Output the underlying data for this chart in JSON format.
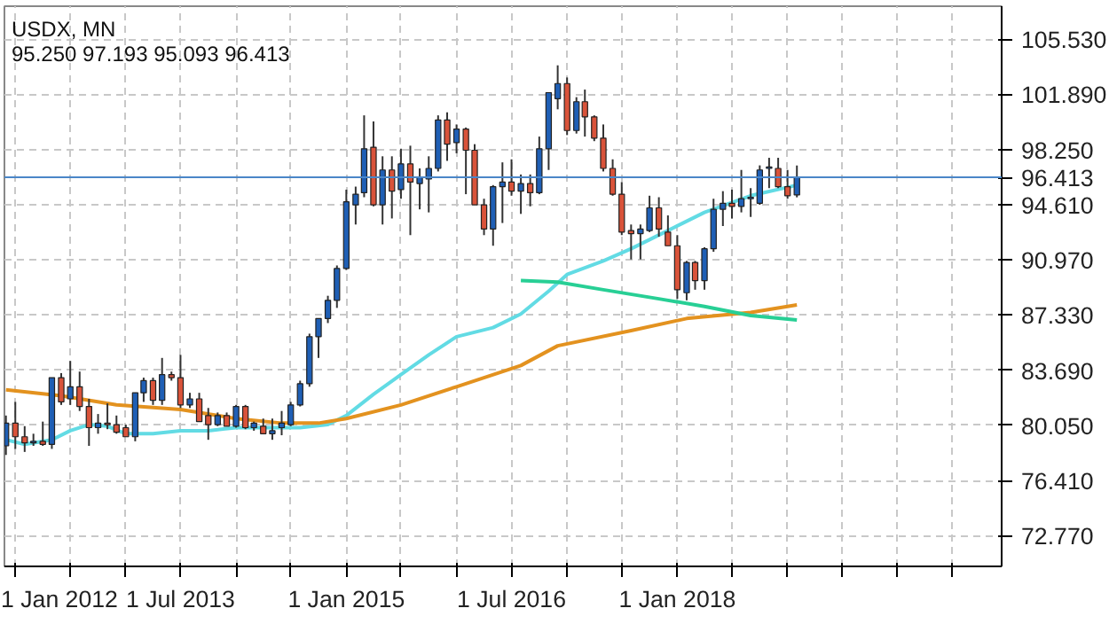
{
  "chart_data": {
    "type": "candlestick",
    "title": "USDX, MN",
    "subtitle": "95.250 97.193 95.093 96.413",
    "x": [
      "2011-12",
      "2012-01",
      "2012-02",
      "2012-03",
      "2012-04",
      "2012-05",
      "2012-06",
      "2012-07",
      "2012-08",
      "2012-09",
      "2012-10",
      "2012-11",
      "2012-12",
      "2013-01",
      "2013-02",
      "2013-03",
      "2013-04",
      "2013-05",
      "2013-06",
      "2013-07",
      "2013-08",
      "2013-09",
      "2013-10",
      "2013-11",
      "2013-12",
      "2014-01",
      "2014-02",
      "2014-03",
      "2014-04",
      "2014-05",
      "2014-06",
      "2014-07",
      "2014-08",
      "2014-09",
      "2014-10",
      "2014-11",
      "2014-12",
      "2015-01",
      "2015-02",
      "2015-03",
      "2015-04",
      "2015-05",
      "2015-06",
      "2015-07",
      "2015-08",
      "2015-09",
      "2015-10",
      "2015-11",
      "2015-12",
      "2016-01",
      "2016-02",
      "2016-03",
      "2016-04",
      "2016-05",
      "2016-06",
      "2016-07",
      "2016-08",
      "2016-09",
      "2016-10",
      "2016-11",
      "2016-12",
      "2017-01",
      "2017-02",
      "2017-03",
      "2017-04",
      "2017-05",
      "2017-06",
      "2017-07",
      "2017-08",
      "2017-09",
      "2017-10",
      "2017-11",
      "2017-12",
      "2018-01",
      "2018-02",
      "2018-03",
      "2018-04",
      "2018-05",
      "2018-06",
      "2018-07",
      "2018-08",
      "2018-09",
      "2018-10",
      "2018-11",
      "2018-12",
      "2019-01",
      "2019-02"
    ],
    "ohlc": [
      [
        78.7,
        80.7,
        78.1,
        80.2
      ],
      [
        80.2,
        81.6,
        78.5,
        79.3
      ],
      [
        79.3,
        80.0,
        78.3,
        78.9
      ],
      [
        78.9,
        79.5,
        78.7,
        79.0
      ],
      [
        79.0,
        80.3,
        78.7,
        78.8
      ],
      [
        78.8,
        83.2,
        78.5,
        83.2
      ],
      [
        83.2,
        83.5,
        81.4,
        81.6
      ],
      [
        81.8,
        84.3,
        81.4,
        82.6
      ],
      [
        82.6,
        83.6,
        81.0,
        81.3
      ],
      [
        81.3,
        81.8,
        78.7,
        79.9
      ],
      [
        79.9,
        80.8,
        79.5,
        80.2
      ],
      [
        80.2,
        81.5,
        79.8,
        80.1
      ],
      [
        80.1,
        80.7,
        79.5,
        79.6
      ],
      [
        79.9,
        80.1,
        79.3,
        79.3
      ],
      [
        79.3,
        82.2,
        79.0,
        82.2
      ],
      [
        82.2,
        83.2,
        81.6,
        83.0
      ],
      [
        83.0,
        83.2,
        81.4,
        81.7
      ],
      [
        81.7,
        84.5,
        81.4,
        83.4
      ],
      [
        83.4,
        83.6,
        83.0,
        83.2
      ],
      [
        83.2,
        84.7,
        81.2,
        81.4
      ],
      [
        81.4,
        82.2,
        81.2,
        81.8
      ],
      [
        81.8,
        82.2,
        80.3,
        80.3
      ],
      [
        80.7,
        81.2,
        79.1,
        80.1
      ],
      [
        80.1,
        80.9,
        80.0,
        80.7
      ],
      [
        80.7,
        80.9,
        80.0,
        80.0
      ],
      [
        80.0,
        81.4,
        79.9,
        81.3
      ],
      [
        81.3,
        81.4,
        79.8,
        79.9
      ],
      [
        79.9,
        80.3,
        79.7,
        80.2
      ],
      [
        80.0,
        80.5,
        79.5,
        79.5
      ],
      [
        79.5,
        80.5,
        79.1,
        79.7
      ],
      [
        79.9,
        81.0,
        79.4,
        80.2
      ],
      [
        80.1,
        81.6,
        80.0,
        81.4
      ],
      [
        81.4,
        83.0,
        81.3,
        82.8
      ],
      [
        82.8,
        86.1,
        82.6,
        85.9
      ],
      [
        85.9,
        87.1,
        84.5,
        87.1
      ],
      [
        87.1,
        88.6,
        86.8,
        88.3
      ],
      [
        88.3,
        90.6,
        87.8,
        90.4
      ],
      [
        90.4,
        95.6,
        90.3,
        94.8
      ],
      [
        94.6,
        95.8,
        93.3,
        95.3
      ],
      [
        95.4,
        100.5,
        95.1,
        98.3
      ],
      [
        98.4,
        100.1,
        94.5,
        94.6
      ],
      [
        94.6,
        97.8,
        93.3,
        96.9
      ],
      [
        96.9,
        97.8,
        93.7,
        95.5
      ],
      [
        95.6,
        98.3,
        95.0,
        97.3
      ],
      [
        97.3,
        98.5,
        92.6,
        96.1
      ],
      [
        96.0,
        97.0,
        94.3,
        96.4
      ],
      [
        96.3,
        97.8,
        94.1,
        97.0
      ],
      [
        97.0,
        100.5,
        96.8,
        100.2
      ],
      [
        100.2,
        100.7,
        97.5,
        98.6
      ],
      [
        98.7,
        99.9,
        98.0,
        99.6
      ],
      [
        99.6,
        99.7,
        95.3,
        98.2
      ],
      [
        98.2,
        98.6,
        94.6,
        94.6
      ],
      [
        94.6,
        95.0,
        92.6,
        93.0
      ],
      [
        93.0,
        95.9,
        91.9,
        95.8
      ],
      [
        95.8,
        97.4,
        93.4,
        96.1
      ],
      [
        96.1,
        97.6,
        95.2,
        95.5
      ],
      [
        95.5,
        96.6,
        94.0,
        96.0
      ],
      [
        96.0,
        96.6,
        94.5,
        95.4
      ],
      [
        95.4,
        99.1,
        95.3,
        98.3
      ],
      [
        98.3,
        102.0,
        96.9,
        102.0
      ],
      [
        101.6,
        103.8,
        100.9,
        102.6
      ],
      [
        102.6,
        103.0,
        99.2,
        99.5
      ],
      [
        99.5,
        101.7,
        99.3,
        101.4
      ],
      [
        101.4,
        102.2,
        99.1,
        100.4
      ],
      [
        100.4,
        100.5,
        98.8,
        99.0
      ],
      [
        99.0,
        99.9,
        96.8,
        97.0
      ],
      [
        97.0,
        97.6,
        95.2,
        95.3
      ],
      [
        95.3,
        96.1,
        92.6,
        92.8
      ],
      [
        92.9,
        93.3,
        91.0,
        92.7
      ],
      [
        92.7,
        93.3,
        91.0,
        93.0
      ],
      [
        92.9,
        95.2,
        92.8,
        94.4
      ],
      [
        94.4,
        95.1,
        92.5,
        93.0
      ],
      [
        92.8,
        93.9,
        91.9,
        91.9
      ],
      [
        91.9,
        92.6,
        88.4,
        89.0
      ],
      [
        88.8,
        90.9,
        88.3,
        90.8
      ],
      [
        90.8,
        90.9,
        89.0,
        89.6
      ],
      [
        89.6,
        91.8,
        89.0,
        91.7
      ],
      [
        91.7,
        95.0,
        91.5,
        94.3
      ],
      [
        94.3,
        95.5,
        93.2,
        94.7
      ],
      [
        94.7,
        95.6,
        93.7,
        94.5
      ],
      [
        94.5,
        96.9,
        94.1,
        95.0
      ],
      [
        95.0,
        95.7,
        93.8,
        95.1
      ],
      [
        94.7,
        97.2,
        94.6,
        96.9
      ],
      [
        97.0,
        97.7,
        95.7,
        97.1
      ],
      [
        97.0,
        97.7,
        95.7,
        95.8
      ],
      [
        95.8,
        96.9,
        95.0,
        95.2
      ],
      [
        95.25,
        97.193,
        95.093,
        96.413
      ]
    ],
    "colors": [
      "#1f5fb5",
      "#d9533a",
      "#d9533a",
      "#1f5fb5",
      "#d9533a",
      "#1f5fb5",
      "#d9533a",
      "#1f5fb5",
      "#d9533a",
      "#d9533a",
      "#1f5fb5",
      "#d9533a",
      "#d9533a",
      "#d9533a",
      "#1f5fb5",
      "#1f5fb5",
      "#d9533a",
      "#1f5fb5",
      "#d9533a",
      "#d9533a",
      "#1f5fb5",
      "#d9533a",
      "#d9533a",
      "#1f5fb5",
      "#d9533a",
      "#1f5fb5",
      "#d9533a",
      "#1f5fb5",
      "#d9533a",
      "#1f5fb5",
      "#1f5fb5",
      "#1f5fb5",
      "#1f5fb5",
      "#1f5fb5",
      "#1f5fb5",
      "#1f5fb5",
      "#1f5fb5",
      "#1f5fb5",
      "#1f5fb5",
      "#1f5fb5",
      "#d9533a",
      "#1f5fb5",
      "#d9533a",
      "#1f5fb5",
      "#d9533a",
      "#1f5fb5",
      "#1f5fb5",
      "#1f5fb5",
      "#d9533a",
      "#1f5fb5",
      "#d9533a",
      "#d9533a",
      "#d9533a",
      "#1f5fb5",
      "#1f5fb5",
      "#d9533a",
      "#1f5fb5",
      "#d9533a",
      "#1f5fb5",
      "#1f5fb5",
      "#1f5fb5",
      "#d9533a",
      "#1f5fb5",
      "#d9533a",
      "#d9533a",
      "#d9533a",
      "#d9533a",
      "#d9533a",
      "#d9533a",
      "#1f5fb5",
      "#1f5fb5",
      "#d9533a",
      "#d9533a",
      "#d9533a",
      "#1f5fb5",
      "#d9533a",
      "#1f5fb5",
      "#1f5fb5",
      "#1f5fb5",
      "#d9533a",
      "#1f5fb5",
      "#1f5fb5",
      "#1f5fb5",
      "#1f5fb5",
      "#d9533a",
      "#d9533a",
      "#1f5fb5"
    ],
    "series": [
      {
        "type": "line",
        "color": "#62dbe4",
        "x": [
          "2011-12",
          "2012-02",
          "2012-05",
          "2012-07",
          "2012-09",
          "2012-11",
          "2013-01",
          "2013-04",
          "2013-07",
          "2013-10",
          "2014-01",
          "2014-04",
          "2014-08",
          "2014-11",
          "2015-01",
          "2015-04",
          "2015-07",
          "2015-10",
          "2016-01",
          "2016-05",
          "2016-08",
          "2016-11",
          "2017-01",
          "2017-05",
          "2017-08",
          "2017-12",
          "2018-04",
          "2018-09",
          "2019-02"
        ],
        "values": [
          79.1,
          78.8,
          79.1,
          79.7,
          80.1,
          80.0,
          79.5,
          79.5,
          79.7,
          79.7,
          79.9,
          79.9,
          79.9,
          80.1,
          80.7,
          82.1,
          83.4,
          84.7,
          85.9,
          86.5,
          87.4,
          88.9,
          90.0,
          90.9,
          91.7,
          92.9,
          94.1,
          95.2,
          95.9
        ]
      },
      {
        "type": "line",
        "color": "#e3921f",
        "x": [
          "2011-12",
          "2012-06",
          "2012-12",
          "2013-07",
          "2014-01",
          "2014-06",
          "2014-10",
          "2015-01",
          "2015-07",
          "2016-01",
          "2016-08",
          "2016-12",
          "2017-08",
          "2018-02",
          "2018-09",
          "2019-02"
        ],
        "values": [
          82.4,
          82.0,
          81.4,
          81.1,
          80.5,
          80.2,
          80.2,
          80.5,
          81.4,
          82.6,
          84.0,
          85.3,
          86.3,
          87.1,
          87.5,
          88.0
        ]
      },
      {
        "type": "line",
        "color": "#28cf95",
        "x": [
          "2016-08",
          "2016-12",
          "2017-05",
          "2017-11",
          "2018-04",
          "2018-09",
          "2019-02"
        ],
        "values": [
          89.6,
          89.5,
          89.0,
          88.4,
          87.9,
          87.3,
          87.0
        ]
      }
    ],
    "xlim": [
      "2011-11-26",
      "2020-12-10"
    ],
    "xticks": [
      {
        "value": "2012-01-01",
        "label": "1 Jan 2012"
      },
      {
        "value": "2012-07-01",
        "label": null
      },
      {
        "value": "2013-01-01",
        "label": null
      },
      {
        "value": "2013-07-01",
        "label": "1 Jul 2013"
      },
      {
        "value": "2014-01-01",
        "label": null
      },
      {
        "value": "2014-07-01",
        "label": null
      },
      {
        "value": "2015-01-01",
        "label": "1 Jan 2015"
      },
      {
        "value": "2015-07-01",
        "label": null
      },
      {
        "value": "2016-01-01",
        "label": null
      },
      {
        "value": "2016-07-01",
        "label": "1 Jul 2016"
      },
      {
        "value": "2017-01-01",
        "label": null
      },
      {
        "value": "2017-07-01",
        "label": null
      },
      {
        "value": "2018-01-01",
        "label": "1 Jan 2018"
      },
      {
        "value": "2018-07-01",
        "label": null
      },
      {
        "value": "2019-01-01",
        "label": null
      },
      {
        "value": "2019-07-01",
        "label": null
      },
      {
        "value": "2020-01-01",
        "label": null
      },
      {
        "value": "2020-07-01",
        "label": null
      }
    ],
    "ylim": [
      70.75,
      107.7
    ],
    "yticks": [
      {
        "value": 72.77,
        "label": "72.770"
      },
      {
        "value": 76.41,
        "label": "76.410"
      },
      {
        "value": 80.05,
        "label": "80.050"
      },
      {
        "value": 83.69,
        "label": "83.690"
      },
      {
        "value": 87.33,
        "label": "87.330"
      },
      {
        "value": 90.97,
        "label": "90.970"
      },
      {
        "value": 94.61,
        "label": "94.610"
      },
      {
        "value": 98.25,
        "label": "98.250"
      },
      {
        "value": 101.89,
        "label": "101.890"
      },
      {
        "value": 105.53,
        "label": "105.530"
      }
    ],
    "ref_lines": [
      {
        "axis": "y",
        "value": 96.413,
        "label": "96.413",
        "color": "#4a86c8"
      }
    ],
    "grid": true
  }
}
